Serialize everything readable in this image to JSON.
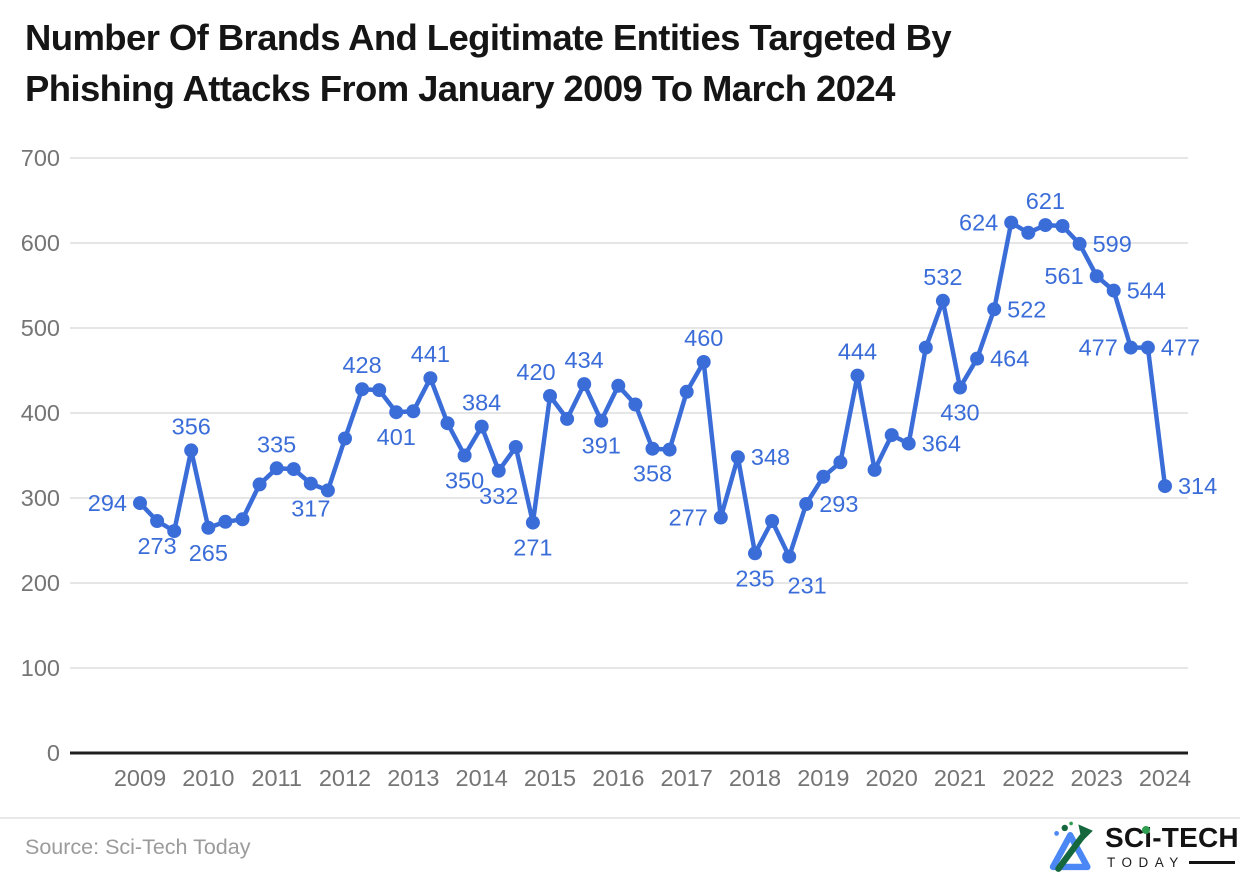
{
  "page": {
    "title_line1": "Number Of Brands And Legitimate Entities Targeted By",
    "title_line2": "Phishing Attacks From January 2009 To March 2024",
    "source_label": "Source: Sci-Tech Today",
    "brand": {
      "name_top": "SCi-TECH",
      "name_bottom": "TODAY"
    }
  },
  "chart_data": {
    "type": "line",
    "title": "Number Of Brands And Legitimate Entities Targeted By Phishing Attacks From January 2009 To March 2024",
    "frequency": "quarterly",
    "x_range": [
      "2009 Q1",
      "2024 Q1"
    ],
    "x_tick_labels": [
      "2009",
      "2010",
      "2011",
      "2012",
      "2013",
      "2014",
      "2015",
      "2016",
      "2017",
      "2018",
      "2019",
      "2020",
      "2021",
      "2022",
      "2023",
      "2024"
    ],
    "y_ticks": [
      0,
      100,
      200,
      300,
      400,
      500,
      600,
      700
    ],
    "ylim": [
      0,
      700
    ],
    "grid": "horizontal-only",
    "legend": "none",
    "colors": {
      "line": "#3B6DD9",
      "data_label": "#3B6DD9",
      "axis_text": "#757575",
      "gridline": "#e6e6e6",
      "zero_axis": "#1f1f1f"
    },
    "series": [
      {
        "name": "brands-targeted-by-phishing",
        "values": [
          294,
          273,
          261,
          356,
          265,
          272,
          275,
          316,
          335,
          334,
          317,
          309,
          370,
          428,
          427,
          401,
          402,
          441,
          388,
          350,
          384,
          332,
          360,
          271,
          420,
          393,
          434,
          391,
          432,
          410,
          358,
          357,
          425,
          460,
          277,
          348,
          235,
          273,
          231,
          293,
          325,
          342,
          444,
          333,
          374,
          364,
          477,
          532,
          430,
          464,
          522,
          624,
          612,
          621,
          620,
          599,
          561,
          544,
          477,
          477,
          314
        ],
        "labeled_points": [
          {
            "index": 0,
            "value": 294,
            "pos": "left"
          },
          {
            "index": 1,
            "value": 273,
            "pos": "below"
          },
          {
            "index": 3,
            "value": 356,
            "pos": "above"
          },
          {
            "index": 4,
            "value": 265,
            "pos": "below"
          },
          {
            "index": 8,
            "value": 335,
            "pos": "above"
          },
          {
            "index": 10,
            "value": 317,
            "pos": "below"
          },
          {
            "index": 13,
            "value": 428,
            "pos": "above"
          },
          {
            "index": 15,
            "value": 401,
            "pos": "below"
          },
          {
            "index": 17,
            "value": 441,
            "pos": "above"
          },
          {
            "index": 19,
            "value": 350,
            "pos": "below"
          },
          {
            "index": 20,
            "value": 384,
            "pos": "above"
          },
          {
            "index": 21,
            "value": 332,
            "pos": "below"
          },
          {
            "index": 23,
            "value": 271,
            "pos": "below"
          },
          {
            "index": 24,
            "value": 420,
            "pos": "above",
            "dx": -14
          },
          {
            "index": 26,
            "value": 434,
            "pos": "above"
          },
          {
            "index": 27,
            "value": 391,
            "pos": "below"
          },
          {
            "index": 30,
            "value": 358,
            "pos": "below"
          },
          {
            "index": 33,
            "value": 460,
            "pos": "above"
          },
          {
            "index": 34,
            "value": 277,
            "pos": "left"
          },
          {
            "index": 35,
            "value": 348,
            "pos": "right"
          },
          {
            "index": 36,
            "value": 235,
            "pos": "below"
          },
          {
            "index": 38,
            "value": 231,
            "pos": "below-right"
          },
          {
            "index": 39,
            "value": 293,
            "pos": "right"
          },
          {
            "index": 42,
            "value": 444,
            "pos": "above"
          },
          {
            "index": 45,
            "value": 364,
            "pos": "right"
          },
          {
            "index": 47,
            "value": 532,
            "pos": "above"
          },
          {
            "index": 48,
            "value": 430,
            "pos": "below"
          },
          {
            "index": 49,
            "value": 464,
            "pos": "right"
          },
          {
            "index": 50,
            "value": 522,
            "pos": "right"
          },
          {
            "index": 51,
            "value": 624,
            "pos": "left"
          },
          {
            "index": 53,
            "value": 621,
            "pos": "above"
          },
          {
            "index": 55,
            "value": 599,
            "pos": "right"
          },
          {
            "index": 56,
            "value": 561,
            "pos": "left"
          },
          {
            "index": 57,
            "value": 544,
            "pos": "right"
          },
          {
            "index": 58,
            "value": 477,
            "pos": "left"
          },
          {
            "index": 59,
            "value": 477,
            "pos": "right"
          },
          {
            "index": 60,
            "value": 314,
            "pos": "right"
          }
        ]
      }
    ]
  }
}
